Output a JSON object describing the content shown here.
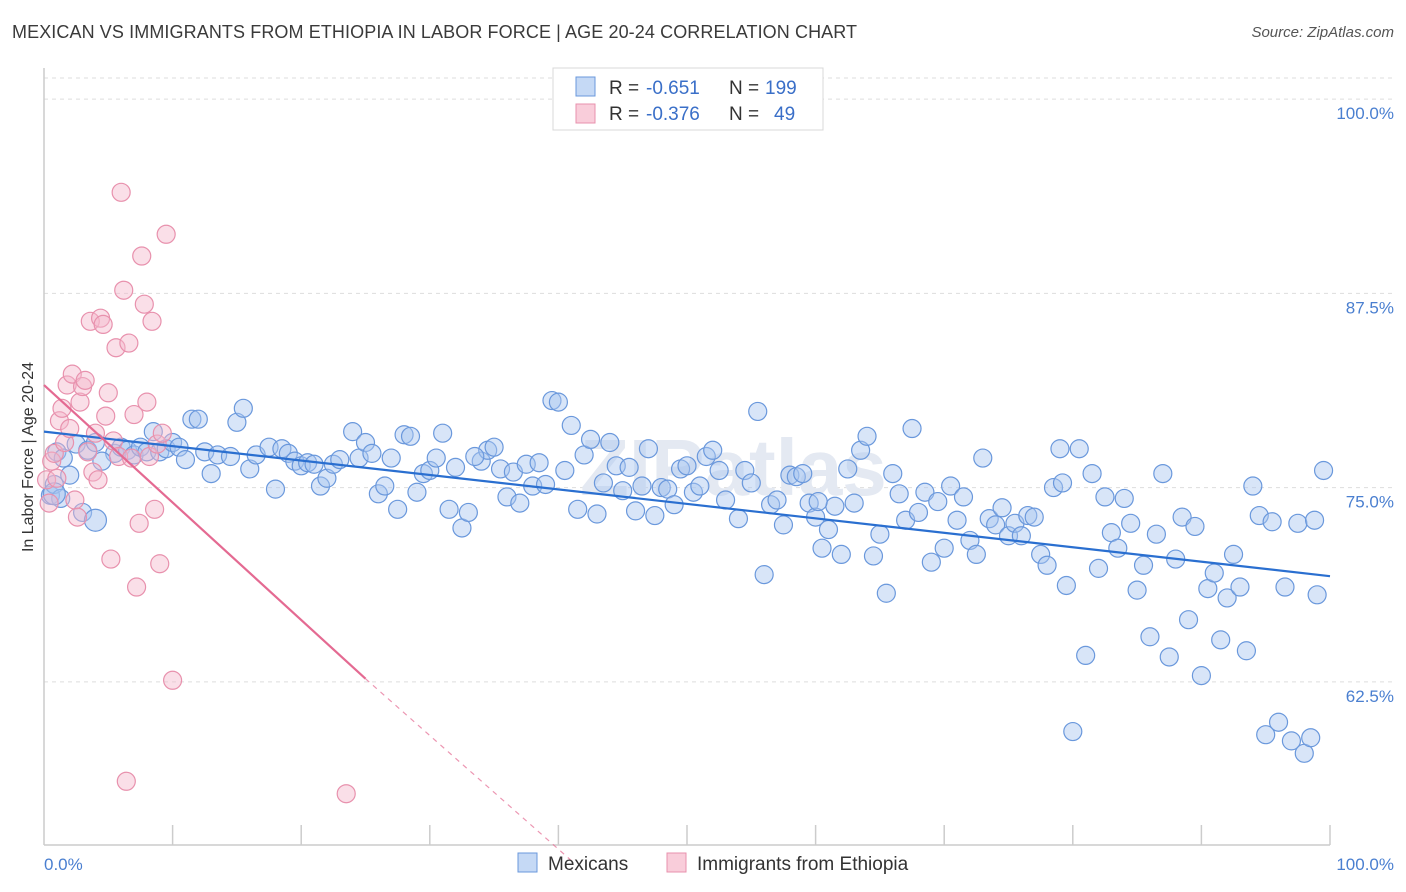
{
  "header": {
    "title": "MEXICAN VS IMMIGRANTS FROM ETHIOPIA IN LABOR FORCE | AGE 20-24 CORRELATION CHART",
    "source": "Source: ZipAtlas.com"
  },
  "colors": {
    "blue_fill": "#a9c6ef",
    "blue_stroke": "#6a98dc",
    "blue_line": "#2a6fd0",
    "pink_fill": "#f5b8cb",
    "pink_stroke": "#e891ad",
    "pink_line": "#e46a92",
    "grid": "#dddddd",
    "tick_text": "#4a7fd0"
  },
  "legend": {
    "rows": [
      {
        "r_label": "R = ",
        "r_value": "-0.651",
        "n_label": "N = ",
        "n_value": "199"
      },
      {
        "r_label": "R = ",
        "r_value": "-0.376",
        "n_label": "N = ",
        "n_value": "49"
      }
    ]
  },
  "bottom_legend": [
    "Mexicans",
    "Immigrants from Ethiopia"
  ],
  "watermark": "ZIPatlas",
  "chart_data": {
    "type": "scatter",
    "title": "MEXICAN VS IMMIGRANTS FROM ETHIOPIA IN LABOR FORCE | AGE 20-24 CORRELATION CHART",
    "xlabel": "",
    "ylabel": "In Labor Force | Age 20-24",
    "xlim": [
      0,
      100
    ],
    "ylim": [
      52,
      102
    ],
    "x_tick_labels": [
      "0.0%",
      "100.0%"
    ],
    "y_ticks": [
      62.5,
      75.0,
      87.5,
      100.0
    ],
    "y_tick_labels": [
      "62.5%",
      "75.0%",
      "87.5%",
      "100.0%"
    ],
    "grid": true,
    "legend_position": "top-center",
    "series": [
      {
        "name": "Mexicans",
        "color": "#6a98dc",
        "trend": {
          "x": [
            0,
            100
          ],
          "y": [
            78.6,
            69.3
          ]
        },
        "points": [
          [
            0.5,
            74.5
          ],
          [
            0.8,
            75.2
          ],
          [
            1.0,
            77.3
          ],
          [
            1.5,
            76.9
          ],
          [
            2.0,
            75.8
          ],
          [
            2.5,
            77.8
          ],
          [
            3.0,
            73.4
          ],
          [
            3.4,
            77.4
          ],
          [
            4.0,
            77.9
          ],
          [
            5.5,
            77.2
          ],
          [
            6.0,
            77.6
          ],
          [
            6.5,
            77.4
          ],
          [
            7.0,
            77.1
          ],
          [
            7.5,
            77.6
          ],
          [
            8.0,
            77.3
          ],
          [
            8.5,
            78.6
          ],
          [
            9.0,
            77.3
          ],
          [
            9.5,
            77.5
          ],
          [
            10.0,
            77.9
          ],
          [
            10.5,
            77.6
          ],
          [
            11.0,
            76.8
          ],
          [
            11.5,
            79.4
          ],
          [
            12.0,
            79.4
          ],
          [
            12.5,
            77.3
          ],
          [
            13.0,
            75.9
          ],
          [
            13.5,
            77.1
          ],
          [
            14.5,
            77.0
          ],
          [
            15.0,
            79.2
          ],
          [
            15.5,
            80.1
          ],
          [
            16.0,
            76.2
          ],
          [
            16.5,
            77.1
          ],
          [
            17.5,
            77.6
          ],
          [
            18.0,
            74.9
          ],
          [
            18.5,
            77.5
          ],
          [
            19.0,
            77.2
          ],
          [
            19.5,
            76.7
          ],
          [
            20.0,
            76.4
          ],
          [
            20.5,
            76.6
          ],
          [
            21.0,
            76.5
          ],
          [
            21.5,
            75.1
          ],
          [
            22.0,
            75.6
          ],
          [
            22.5,
            76.5
          ],
          [
            23.0,
            76.8
          ],
          [
            24.0,
            78.6
          ],
          [
            24.5,
            76.9
          ],
          [
            25.0,
            77.9
          ],
          [
            25.5,
            77.2
          ],
          [
            26.0,
            74.6
          ],
          [
            26.5,
            75.1
          ],
          [
            27.0,
            76.9
          ],
          [
            27.5,
            73.6
          ],
          [
            28.0,
            78.4
          ],
          [
            28.5,
            78.3
          ],
          [
            29.0,
            74.7
          ],
          [
            29.5,
            75.9
          ],
          [
            30.0,
            76.1
          ],
          [
            30.5,
            76.9
          ],
          [
            31.0,
            78.5
          ],
          [
            31.5,
            73.6
          ],
          [
            32.0,
            76.3
          ],
          [
            32.5,
            72.4
          ],
          [
            33.0,
            73.4
          ],
          [
            34.0,
            76.7
          ],
          [
            34.5,
            77.4
          ],
          [
            35.0,
            77.6
          ],
          [
            35.5,
            76.2
          ],
          [
            36.0,
            74.4
          ],
          [
            36.5,
            76.0
          ],
          [
            37.0,
            74.0
          ],
          [
            37.5,
            76.5
          ],
          [
            38.0,
            75.1
          ],
          [
            38.5,
            76.6
          ],
          [
            39.0,
            75.2
          ],
          [
            39.5,
            80.6
          ],
          [
            40.0,
            80.5
          ],
          [
            40.5,
            76.1
          ],
          [
            41.0,
            79.0
          ],
          [
            41.5,
            73.6
          ],
          [
            42.0,
            77.1
          ],
          [
            42.5,
            78.1
          ],
          [
            43.0,
            73.3
          ],
          [
            43.5,
            75.3
          ],
          [
            44.0,
            77.9
          ],
          [
            44.5,
            76.4
          ],
          [
            45.0,
            74.8
          ],
          [
            45.5,
            76.3
          ],
          [
            46.0,
            73.5
          ],
          [
            46.5,
            75.1
          ],
          [
            47.0,
            77.5
          ],
          [
            47.5,
            73.2
          ],
          [
            48.0,
            75.0
          ],
          [
            48.5,
            74.9
          ],
          [
            49.0,
            73.9
          ],
          [
            49.5,
            76.2
          ],
          [
            50.0,
            76.4
          ],
          [
            50.5,
            74.7
          ],
          [
            51.0,
            75.1
          ],
          [
            51.5,
            77.0
          ],
          [
            52.0,
            77.4
          ],
          [
            52.5,
            76.1
          ],
          [
            53.0,
            74.2
          ],
          [
            54.0,
            73.0
          ],
          [
            54.5,
            76.1
          ],
          [
            55.0,
            75.3
          ],
          [
            55.5,
            79.9
          ],
          [
            56.0,
            69.4
          ],
          [
            56.5,
            73.9
          ],
          [
            57.0,
            74.2
          ],
          [
            57.5,
            72.6
          ],
          [
            58.0,
            75.8
          ],
          [
            58.5,
            75.7
          ],
          [
            59.0,
            75.9
          ],
          [
            59.5,
            74.0
          ],
          [
            60.0,
            73.1
          ],
          [
            60.5,
            71.1
          ],
          [
            61.0,
            72.3
          ],
          [
            61.5,
            73.8
          ],
          [
            62.0,
            70.7
          ],
          [
            62.5,
            76.2
          ],
          [
            63.0,
            74.0
          ],
          [
            63.5,
            77.4
          ],
          [
            64.0,
            78.3
          ],
          [
            64.5,
            70.6
          ],
          [
            65.0,
            72.0
          ],
          [
            65.5,
            68.2
          ],
          [
            66.0,
            75.9
          ],
          [
            66.5,
            74.6
          ],
          [
            67.0,
            72.9
          ],
          [
            67.5,
            78.8
          ],
          [
            68.0,
            73.4
          ],
          [
            68.5,
            74.7
          ],
          [
            69.0,
            70.2
          ],
          [
            69.5,
            74.1
          ],
          [
            70.0,
            71.1
          ],
          [
            70.5,
            75.1
          ],
          [
            71.0,
            72.9
          ],
          [
            71.5,
            74.4
          ],
          [
            72.0,
            71.6
          ],
          [
            72.5,
            70.7
          ],
          [
            73.0,
            76.9
          ],
          [
            73.5,
            73.0
          ],
          [
            74.0,
            72.6
          ],
          [
            74.5,
            73.7
          ],
          [
            75.0,
            71.9
          ],
          [
            75.5,
            72.7
          ],
          [
            76.0,
            71.9
          ],
          [
            76.5,
            73.2
          ],
          [
            77.0,
            73.1
          ],
          [
            77.5,
            70.7
          ],
          [
            78.0,
            70.0
          ],
          [
            78.5,
            75.0
          ],
          [
            79.0,
            77.5
          ],
          [
            79.5,
            68.7
          ],
          [
            80.0,
            59.3
          ],
          [
            80.5,
            77.5
          ],
          [
            81.0,
            64.2
          ],
          [
            81.5,
            75.9
          ],
          [
            82.0,
            69.8
          ],
          [
            82.5,
            74.4
          ],
          [
            83.0,
            72.1
          ],
          [
            83.5,
            71.1
          ],
          [
            84.0,
            74.3
          ],
          [
            84.5,
            72.7
          ],
          [
            85.0,
            68.4
          ],
          [
            85.5,
            70.0
          ],
          [
            86.0,
            65.4
          ],
          [
            86.5,
            72.0
          ],
          [
            87.0,
            75.9
          ],
          [
            87.5,
            64.1
          ],
          [
            88.0,
            70.4
          ],
          [
            88.5,
            73.1
          ],
          [
            89.0,
            66.5
          ],
          [
            89.5,
            72.5
          ],
          [
            90.0,
            62.9
          ],
          [
            90.5,
            68.5
          ],
          [
            91.0,
            69.5
          ],
          [
            91.5,
            65.2
          ],
          [
            92.0,
            67.9
          ],
          [
            92.5,
            70.7
          ],
          [
            93.0,
            68.6
          ],
          [
            93.5,
            64.5
          ],
          [
            94.0,
            75.1
          ],
          [
            94.5,
            73.2
          ],
          [
            95.0,
            59.1
          ],
          [
            95.5,
            72.8
          ],
          [
            96.0,
            59.9
          ],
          [
            96.5,
            68.6
          ],
          [
            97.0,
            58.7
          ],
          [
            97.5,
            72.7
          ],
          [
            98.0,
            57.9
          ],
          [
            98.5,
            58.9
          ],
          [
            99.0,
            68.1
          ],
          [
            99.5,
            76.1
          ],
          [
            1.3,
            74.3
          ],
          [
            4.5,
            76.7
          ],
          [
            33.5,
            77.0
          ],
          [
            60.2,
            74.1
          ],
          [
            79.2,
            75.3
          ],
          [
            98.8,
            72.9
          ]
        ]
      },
      {
        "name": "Immigrants from Ethiopia",
        "color": "#e891ad",
        "trend": {
          "x": [
            0,
            25
          ],
          "y": [
            81.6,
            62.7
          ]
        },
        "trend_dashed": {
          "x": [
            25,
            41
          ],
          "y": [
            62.7,
            51.0
          ]
        },
        "points": [
          [
            0.2,
            75.5
          ],
          [
            0.4,
            74.0
          ],
          [
            0.6,
            76.7
          ],
          [
            0.8,
            77.2
          ],
          [
            1.0,
            75.6
          ],
          [
            1.2,
            79.3
          ],
          [
            1.4,
            80.1
          ],
          [
            1.6,
            77.9
          ],
          [
            1.8,
            81.6
          ],
          [
            2.0,
            78.8
          ],
          [
            2.2,
            82.3
          ],
          [
            2.4,
            74.2
          ],
          [
            2.6,
            73.1
          ],
          [
            2.8,
            80.5
          ],
          [
            3.0,
            81.5
          ],
          [
            3.2,
            81.9
          ],
          [
            3.4,
            77.3
          ],
          [
            3.6,
            85.7
          ],
          [
            3.8,
            76.0
          ],
          [
            4.0,
            78.5
          ],
          [
            4.2,
            75.5
          ],
          [
            4.4,
            85.9
          ],
          [
            4.6,
            85.5
          ],
          [
            4.8,
            79.6
          ],
          [
            5.0,
            81.1
          ],
          [
            5.2,
            70.4
          ],
          [
            5.4,
            78.0
          ],
          [
            5.6,
            84.0
          ],
          [
            5.8,
            77.0
          ],
          [
            6.0,
            94.0
          ],
          [
            6.2,
            87.7
          ],
          [
            6.4,
            56.1
          ],
          [
            6.6,
            84.3
          ],
          [
            6.8,
            76.9
          ],
          [
            7.0,
            79.7
          ],
          [
            7.2,
            68.6
          ],
          [
            7.4,
            72.7
          ],
          [
            7.6,
            89.9
          ],
          [
            7.8,
            86.8
          ],
          [
            8.0,
            80.5
          ],
          [
            8.2,
            77.0
          ],
          [
            8.4,
            85.7
          ],
          [
            8.6,
            73.6
          ],
          [
            8.8,
            77.8
          ],
          [
            9.0,
            70.1
          ],
          [
            9.2,
            78.5
          ],
          [
            9.5,
            91.3
          ],
          [
            10.0,
            62.6
          ],
          [
            23.5,
            55.3
          ]
        ]
      }
    ]
  }
}
